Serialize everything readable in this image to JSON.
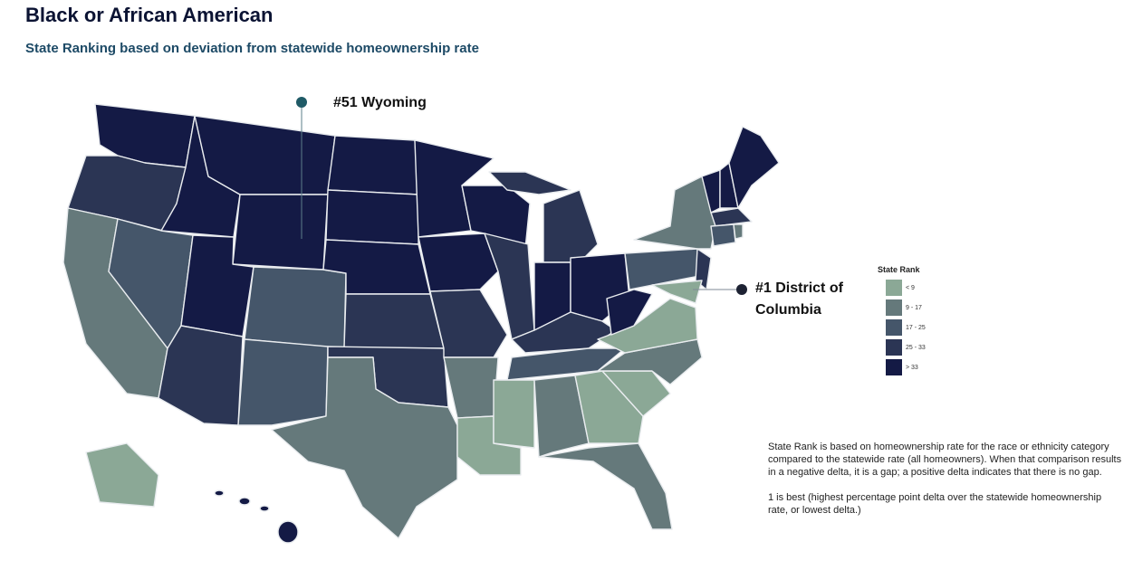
{
  "header": {
    "title": "Black or African American",
    "subtitle": "State Ranking based on deviation from statewide homeownership rate"
  },
  "annotations": [
    {
      "lines": [
        "#51 Wyoming"
      ]
    },
    {
      "lines": [
        "#1 District of",
        "Columbia"
      ]
    }
  ],
  "legend": {
    "title": "State Rank",
    "items": [
      {
        "label": "< 9",
        "color": "#8ba896"
      },
      {
        "label": "9 - 17",
        "color": "#65797b"
      },
      {
        "label": "17 - 25",
        "color": "#45566a"
      },
      {
        "label": "25 - 33",
        "color": "#2b3554"
      },
      {
        "label": "> 33",
        "color": "#141a45"
      }
    ]
  },
  "notes": [
    "State Rank is based on homeownership rate for the race or ethnicity category compared to the statewide rate (all homeowners). When that comparison results in a negative delta, it is a gap; a positive delta indicates that there is no gap.",
    "1 is best (highest percentage point delta over the statewide homeownership rate, or lowest delta.)"
  ]
}
